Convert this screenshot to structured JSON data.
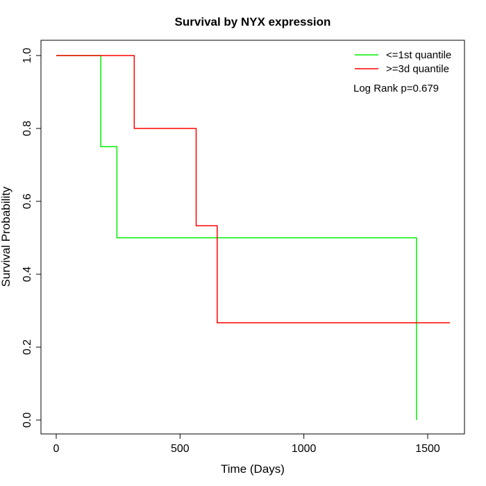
{
  "chart_data": {
    "type": "line",
    "title": "Survival by NYX expression",
    "xlabel": "Time (Days)",
    "ylabel": "Survival Probability",
    "xlim": [
      0,
      1600
    ],
    "ylim": [
      0,
      1
    ],
    "x_ticks": [
      0,
      500,
      1000,
      1500
    ],
    "y_ticks": [
      0.0,
      0.2,
      0.4,
      0.6,
      0.8,
      1.0
    ],
    "x_tick_labels": [
      "0",
      "500",
      "1000",
      "1500"
    ],
    "y_tick_labels": [
      "0.0",
      "0.2",
      "0.4",
      "0.6",
      "0.8",
      "1.0"
    ],
    "grid": false,
    "legend_position": "top-right",
    "annotation": "Log Rank p=0.679",
    "series": [
      {
        "name": "<=1st quantile",
        "color": "#00ee00",
        "step": true,
        "points": [
          [
            0,
            1.0
          ],
          [
            180,
            1.0
          ],
          [
            180,
            0.75
          ],
          [
            245,
            0.75
          ],
          [
            245,
            0.5
          ],
          [
            1455,
            0.5
          ],
          [
            1455,
            0.0
          ]
        ]
      },
      {
        "name": ">=3d quantile",
        "color": "#ff0000",
        "step": true,
        "points": [
          [
            0,
            1.0
          ],
          [
            315,
            1.0
          ],
          [
            315,
            0.8
          ],
          [
            565,
            0.8
          ],
          [
            565,
            0.533
          ],
          [
            650,
            0.533
          ],
          [
            650,
            0.267
          ],
          [
            1590,
            0.267
          ]
        ]
      }
    ]
  }
}
